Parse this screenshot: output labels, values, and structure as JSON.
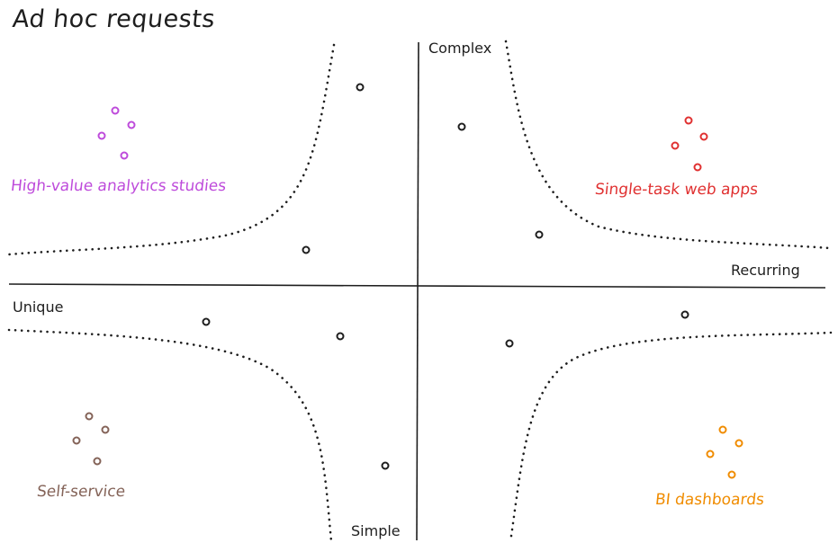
{
  "title": "Ad hoc requests",
  "axes": {
    "top": "Complex",
    "bottom": "Simple",
    "left": "Unique",
    "right": "Recurring"
  },
  "quadrants": {
    "top_left": {
      "label": "High-value analytics studies",
      "color": "#be4bdb"
    },
    "top_right": {
      "label": "Single-task web apps",
      "color": "#e03131"
    },
    "bottom_left": {
      "label": "Self-service",
      "color": "#846358"
    },
    "bottom_right": {
      "label": "BI dashboards",
      "color": "#f08c00"
    }
  },
  "colors": {
    "ink": "#1e1e1e"
  }
}
